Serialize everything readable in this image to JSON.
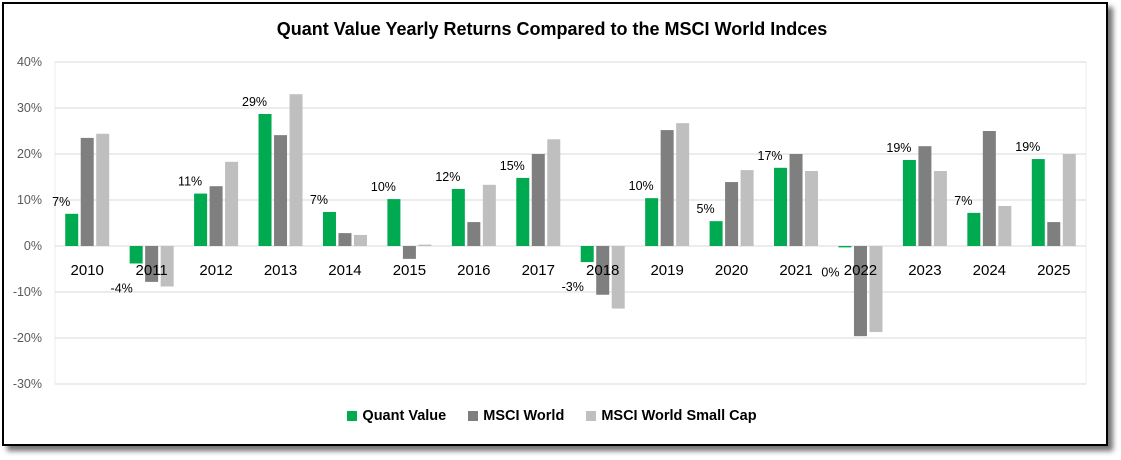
{
  "chart_data": {
    "type": "bar",
    "title": "Quant Value Yearly Returns Compared to the MSCI World Indces",
    "xlabel": "",
    "ylabel": "",
    "ylim": [
      -30,
      40
    ],
    "yticks": [
      "40%",
      "30%",
      "20%",
      "10%",
      "0%",
      "-10%",
      "-20%",
      "-30%"
    ],
    "ytick_values": [
      40,
      30,
      20,
      10,
      0,
      -10,
      -20,
      -30
    ],
    "grid": true,
    "legend_position": "bottom",
    "categories": [
      "2010",
      "2011",
      "2012",
      "2013",
      "2014",
      "2015",
      "2016",
      "2017",
      "2018",
      "2019",
      "2020",
      "2021",
      "2022",
      "2023",
      "2024",
      "2025"
    ],
    "series": [
      {
        "name": "Quant Value",
        "color": "#00AA50",
        "values": [
          7.0,
          -3.8,
          11.4,
          28.7,
          7.4,
          10.2,
          12.4,
          14.8,
          -3.5,
          10.4,
          5.4,
          17.0,
          -0.3,
          18.7,
          7.2,
          18.9
        ],
        "data_labels": [
          "7%",
          "-4%",
          "11%",
          "29%",
          "7%",
          "10%",
          "12%",
          "15%",
          "-3%",
          "10%",
          "5%",
          "17%",
          "0%",
          "19%",
          "7%",
          "19%"
        ]
      },
      {
        "name": "MSCI World",
        "color": "#7F7F7F",
        "values": [
          23.5,
          -7.8,
          13.0,
          24.1,
          2.8,
          -2.8,
          5.2,
          20.0,
          -10.6,
          25.2,
          13.9,
          20.0,
          -19.6,
          21.7,
          25.0,
          5.2
        ]
      },
      {
        "name": "MSCI World Small Cap",
        "color": "#BFBFBF",
        "values": [
          24.4,
          -8.8,
          18.3,
          33.0,
          2.4,
          0.3,
          13.3,
          23.2,
          -13.6,
          26.7,
          16.5,
          16.3,
          -18.7,
          16.3,
          8.7,
          20.0
        ]
      }
    ]
  }
}
